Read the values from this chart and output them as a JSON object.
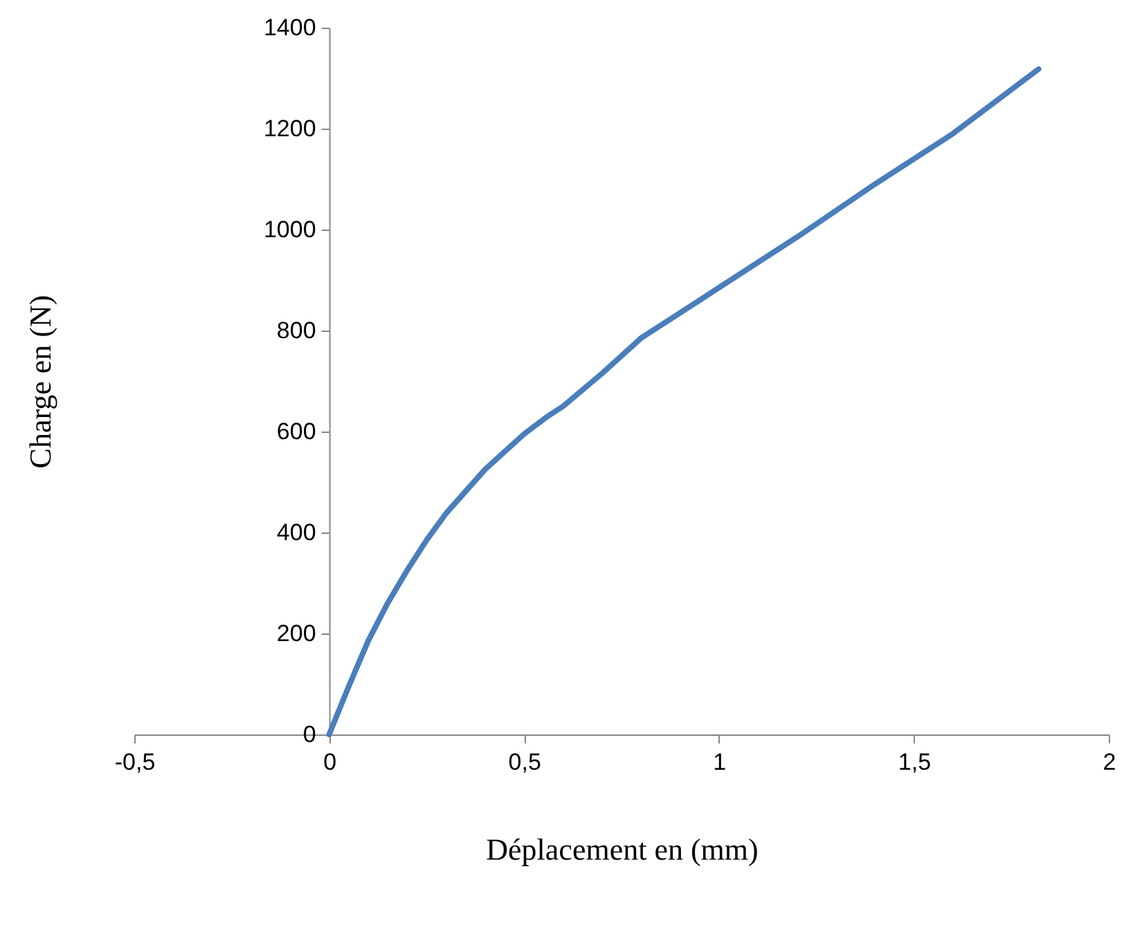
{
  "chart_data": {
    "type": "line",
    "xlabel": "Déplacement  en  (mm)",
    "ylabel": "Charge  en  (N)",
    "x": [
      0,
      0.05,
      0.1,
      0.15,
      0.2,
      0.25,
      0.3,
      0.4,
      0.5,
      0.56,
      0.6,
      0.7,
      0.8,
      1.0,
      1.2,
      1.4,
      1.6,
      1.82
    ],
    "series": [
      {
        "color": "#4a7ebb",
        "values": [
          0,
          95,
          185,
          260,
          325,
          385,
          438,
          525,
          595,
          630,
          650,
          715,
          785,
          885,
          985,
          1090,
          1190,
          1318
        ]
      }
    ],
    "xlim": [
      -0.5,
      2
    ],
    "ylim": [
      0,
      1400
    ],
    "xticks": [
      {
        "value": -0.5,
        "label": "-0,5"
      },
      0,
      {
        "value": 0.5,
        "label": "0,5"
      },
      1,
      {
        "value": 1.5,
        "label": "1,5"
      },
      2
    ],
    "yticks": [
      0,
      200,
      400,
      600,
      800,
      1000,
      1200,
      1400
    ],
    "grid": false,
    "marker": "none",
    "line_style": "solid"
  }
}
